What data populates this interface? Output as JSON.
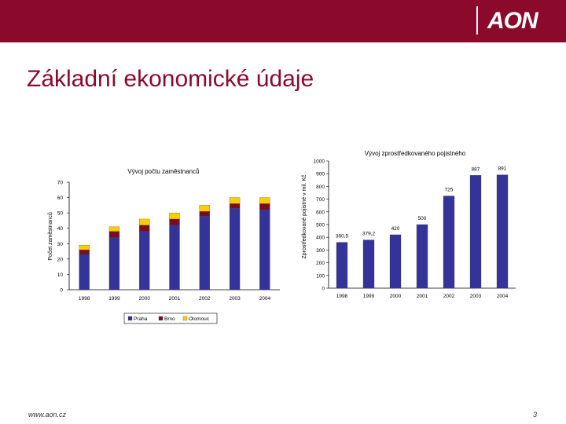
{
  "header": {
    "logo_text": "AON",
    "brand_color": "#8b0a2c"
  },
  "page": {
    "title": "Základní ekonomické údaje",
    "footer_url": "www.aon.cz",
    "page_number": "3"
  },
  "chart_data": [
    {
      "type": "bar",
      "stacked": true,
      "title": "Vývoj počtu zaměstnanců",
      "ylabel": "Počet zaměstnanců",
      "xlabel": "",
      "categories": [
        "1998",
        "1999",
        "2000",
        "2001",
        "2002",
        "2003",
        "2004"
      ],
      "ylim": [
        0,
        70
      ],
      "yticks": [
        0,
        10,
        20,
        30,
        40,
        50,
        60,
        70
      ],
      "series": [
        {
          "name": "Praha",
          "color": "#333399",
          "values": [
            23,
            34,
            38,
            42,
            48,
            53,
            52
          ]
        },
        {
          "name": "Brno",
          "color": "#7a0c22",
          "values": [
            3,
            4,
            4,
            4,
            3,
            3,
            4
          ]
        },
        {
          "name": "Olomouc",
          "color": "#ffcc00",
          "values": [
            3,
            3,
            4,
            4,
            4,
            4,
            4
          ]
        }
      ],
      "legend": "bottom",
      "grid": false
    },
    {
      "type": "bar",
      "title": "Vývoj zprostředkovaného pojistného",
      "ylabel": "Zprostředkované pojistné v mil. Kč",
      "xlabel": "",
      "categories": [
        "1998",
        "1999",
        "2000",
        "2001",
        "2002",
        "2003",
        "2004"
      ],
      "values": [
        360.5,
        379.2,
        420,
        500,
        725,
        887,
        891
      ],
      "value_labels": [
        "360,5",
        "379,2",
        "420",
        "500",
        "725",
        "887",
        "891"
      ],
      "ylim": [
        0,
        1000
      ],
      "yticks": [
        0,
        100,
        200,
        300,
        400,
        500,
        600,
        700,
        800,
        900,
        1000
      ],
      "color": "#333399",
      "grid": false
    }
  ]
}
